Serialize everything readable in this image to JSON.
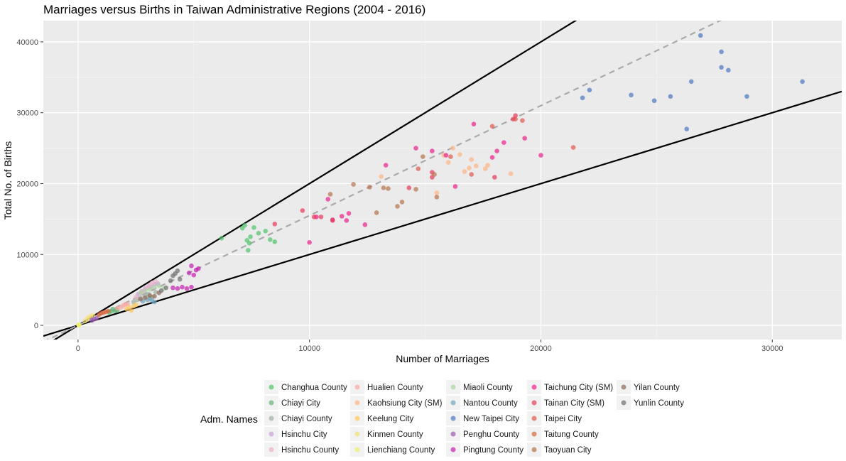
{
  "chart_data": {
    "type": "scatter",
    "title": "Marriages versus Births in Taiwan Administrative Regions (2004 - 2016)",
    "xlabel": "Number of Marriages",
    "ylabel": "Total No. of Births",
    "xlim": [
      -1500,
      33000
    ],
    "ylim": [
      -2000,
      43000
    ],
    "xticks": [
      0,
      10000,
      20000,
      30000
    ],
    "yticks": [
      0,
      10000,
      20000,
      30000,
      40000
    ],
    "grid": true,
    "legend": {
      "title": "Adm. Names",
      "position": "bottom"
    },
    "reference_lines": [
      {
        "style": "solid",
        "color": "#000000",
        "slope": 2.0,
        "intercept": 0
      },
      {
        "style": "solid",
        "color": "#000000",
        "slope": 1.0,
        "intercept": 0
      },
      {
        "style": "dashed",
        "color": "#aaaaaa",
        "slope": 1.55,
        "intercept": 0
      }
    ],
    "series": [
      {
        "name": "Changhua County",
        "color": "#4fc46a",
        "points": [
          [
            6200,
            12300
          ],
          [
            7100,
            13700
          ],
          [
            7200,
            14100
          ],
          [
            7300,
            12000
          ],
          [
            7350,
            10600
          ],
          [
            7400,
            11600
          ],
          [
            7450,
            12500
          ],
          [
            7600,
            13800
          ],
          [
            7800,
            13000
          ],
          [
            8100,
            13300
          ],
          [
            8300,
            12100
          ],
          [
            8500,
            11800
          ]
        ]
      },
      {
        "name": "Chiayi City",
        "color": "#66b378",
        "points": [
          [
            1350,
            1800
          ],
          [
            1450,
            2000
          ],
          [
            1500,
            2300
          ],
          [
            1600,
            2050
          ],
          [
            1650,
            2200
          ],
          [
            1700,
            2100
          ]
        ]
      },
      {
        "name": "Chiayi County",
        "color": "#a0b0a4",
        "points": [
          [
            2400,
            3300
          ],
          [
            2550,
            3600
          ],
          [
            2700,
            3900
          ],
          [
            2900,
            4200
          ],
          [
            3050,
            4400
          ],
          [
            3200,
            4000
          ],
          [
            3350,
            4700
          ]
        ]
      },
      {
        "name": "Hsinchu City",
        "color": "#c8a2d6",
        "points": [
          [
            2600,
            4400
          ],
          [
            2750,
            4800
          ],
          [
            2900,
            5200
          ],
          [
            3050,
            5500
          ],
          [
            3150,
            5400
          ],
          [
            3300,
            5800
          ],
          [
            3450,
            5900
          ]
        ]
      },
      {
        "name": "Hsinchu County",
        "color": "#e8b4c8",
        "points": [
          [
            2500,
            4000
          ],
          [
            2700,
            4500
          ],
          [
            2850,
            4900
          ],
          [
            3000,
            5300
          ],
          [
            3100,
            5700
          ],
          [
            3200,
            6000
          ],
          [
            3350,
            6200
          ]
        ]
      },
      {
        "name": "Hualien County",
        "color": "#f7a8a0",
        "points": [
          [
            1700,
            2400
          ],
          [
            1850,
            2550
          ],
          [
            1950,
            2800
          ],
          [
            2050,
            2950
          ],
          [
            2150,
            3000
          ]
        ]
      },
      {
        "name": "Kaohsiung City (SM)",
        "color": "#ffb482",
        "points": [
          [
            13100,
            21000
          ],
          [
            15500,
            18700
          ],
          [
            15800,
            24000
          ],
          [
            16000,
            23000
          ],
          [
            16200,
            25000
          ],
          [
            16500,
            24100
          ],
          [
            16700,
            21700
          ],
          [
            16900,
            22200
          ],
          [
            17000,
            23400
          ],
          [
            17200,
            22500
          ],
          [
            17600,
            22100
          ],
          [
            17700,
            22600
          ],
          [
            18700,
            21400
          ]
        ]
      },
      {
        "name": "Keelung City",
        "color": "#ffc85a",
        "points": [
          [
            2100,
            2300
          ],
          [
            2200,
            2500
          ],
          [
            2300,
            2100
          ],
          [
            2400,
            2700
          ],
          [
            2500,
            2900
          ]
        ]
      },
      {
        "name": "Kinmen County",
        "color": "#f5e07a",
        "points": [
          [
            300,
            600
          ],
          [
            400,
            900
          ],
          [
            450,
            1100
          ],
          [
            550,
            1300
          ],
          [
            650,
            1400
          ]
        ]
      },
      {
        "name": "Lienchiang County",
        "color": "#f0f06a",
        "points": [
          [
            20,
            40
          ],
          [
            30,
            60
          ],
          [
            40,
            80
          ],
          [
            50,
            70
          ]
        ]
      },
      {
        "name": "Miaoli County",
        "color": "#a9d4a0",
        "points": [
          [
            2700,
            4600
          ],
          [
            2900,
            4900
          ],
          [
            3100,
            5100
          ],
          [
            3300,
            5400
          ],
          [
            3500,
            5600
          ],
          [
            3700,
            5200
          ]
        ]
      },
      {
        "name": "Nantou County",
        "color": "#6fa5be",
        "points": [
          [
            2800,
            3400
          ],
          [
            3000,
            3600
          ],
          [
            3100,
            3800
          ],
          [
            3200,
            3500
          ],
          [
            3300,
            3300
          ]
        ]
      },
      {
        "name": "New Taipei City",
        "color": "#4a78c0",
        "points": [
          [
            21800,
            32100
          ],
          [
            22100,
            33200
          ],
          [
            23900,
            32500
          ],
          [
            24900,
            31700
          ],
          [
            25600,
            32300
          ],
          [
            26300,
            27700
          ],
          [
            26500,
            34400
          ],
          [
            26900,
            40900
          ],
          [
            27800,
            38600
          ],
          [
            27800,
            36400
          ],
          [
            28100,
            36000
          ],
          [
            28900,
            32300
          ],
          [
            31300,
            34400
          ]
        ]
      },
      {
        "name": "Penghu County",
        "color": "#9a58b5",
        "points": [
          [
            600,
            700
          ],
          [
            700,
            900
          ],
          [
            800,
            1000
          ]
        ]
      },
      {
        "name": "Pingtung County",
        "color": "#c41eb0",
        "points": [
          [
            4100,
            5300
          ],
          [
            4300,
            5200
          ],
          [
            4500,
            5400
          ],
          [
            4700,
            5200
          ],
          [
            4900,
            5400
          ],
          [
            4800,
            7400
          ],
          [
            4900,
            8400
          ],
          [
            5000,
            7100
          ],
          [
            5100,
            7800
          ],
          [
            5200,
            8000
          ]
        ]
      },
      {
        "name": "Taichung City (SM)",
        "color": "#ee1f8c",
        "points": [
          [
            10000,
            11700
          ],
          [
            10300,
            15300
          ],
          [
            10800,
            17800
          ],
          [
            11000,
            14900
          ],
          [
            11400,
            15400
          ],
          [
            11600,
            14800
          ],
          [
            11700,
            15800
          ],
          [
            12400,
            14200
          ],
          [
            13300,
            22600
          ],
          [
            14600,
            25000
          ],
          [
            15300,
            24600
          ],
          [
            15900,
            24000
          ],
          [
            16300,
            19600
          ],
          [
            17100,
            28400
          ],
          [
            17900,
            23700
          ],
          [
            18100,
            24600
          ],
          [
            18400,
            25800
          ],
          [
            19300,
            26400
          ],
          [
            20000,
            24000
          ]
        ]
      },
      {
        "name": "Tainan City (SM)",
        "color": "#e8375a",
        "points": [
          [
            8500,
            14300
          ],
          [
            9700,
            16200
          ],
          [
            10200,
            15300
          ],
          [
            10500,
            15300
          ],
          [
            11000,
            14800
          ],
          [
            14300,
            19400
          ],
          [
            15300,
            20900
          ],
          [
            15300,
            21600
          ],
          [
            18000,
            20900
          ],
          [
            18800,
            29100
          ],
          [
            18900,
            29600
          ]
        ]
      },
      {
        "name": "Taipei City",
        "color": "#e0584e",
        "points": [
          [
            14700,
            22100
          ],
          [
            16100,
            23800
          ],
          [
            17000,
            21300
          ],
          [
            17900,
            28100
          ],
          [
            18900,
            29100
          ],
          [
            19200,
            28900
          ],
          [
            21400,
            25100
          ]
        ]
      },
      {
        "name": "Taitung County",
        "color": "#d8643c",
        "points": [
          [
            900,
            1500
          ],
          [
            1000,
            1700
          ],
          [
            1100,
            1800
          ],
          [
            1200,
            1900
          ],
          [
            1300,
            2000
          ]
        ]
      },
      {
        "name": "Taoyuan City",
        "color": "#b8734c",
        "points": [
          [
            10900,
            18500
          ],
          [
            11900,
            19900
          ],
          [
            12600,
            19500
          ],
          [
            12900,
            15900
          ],
          [
            13200,
            19400
          ],
          [
            13400,
            19300
          ],
          [
            13800,
            16800
          ],
          [
            14000,
            17400
          ],
          [
            14600,
            19200
          ],
          [
            14900,
            23800
          ],
          [
            15400,
            21300
          ],
          [
            15500,
            18100
          ]
        ]
      },
      {
        "name": "Yilan County",
        "color": "#8f6a55",
        "points": [
          [
            2700,
            3700
          ],
          [
            2900,
            3900
          ],
          [
            3100,
            4200
          ],
          [
            3300,
            4100
          ],
          [
            3500,
            4600
          ]
        ]
      },
      {
        "name": "Yunlin County",
        "color": "#6e6e6e",
        "points": [
          [
            3600,
            4900
          ],
          [
            3800,
            5300
          ],
          [
            4000,
            6300
          ],
          [
            4100,
            7000
          ],
          [
            4200,
            7300
          ],
          [
            4300,
            7700
          ],
          [
            4400,
            6500
          ]
        ]
      }
    ]
  }
}
